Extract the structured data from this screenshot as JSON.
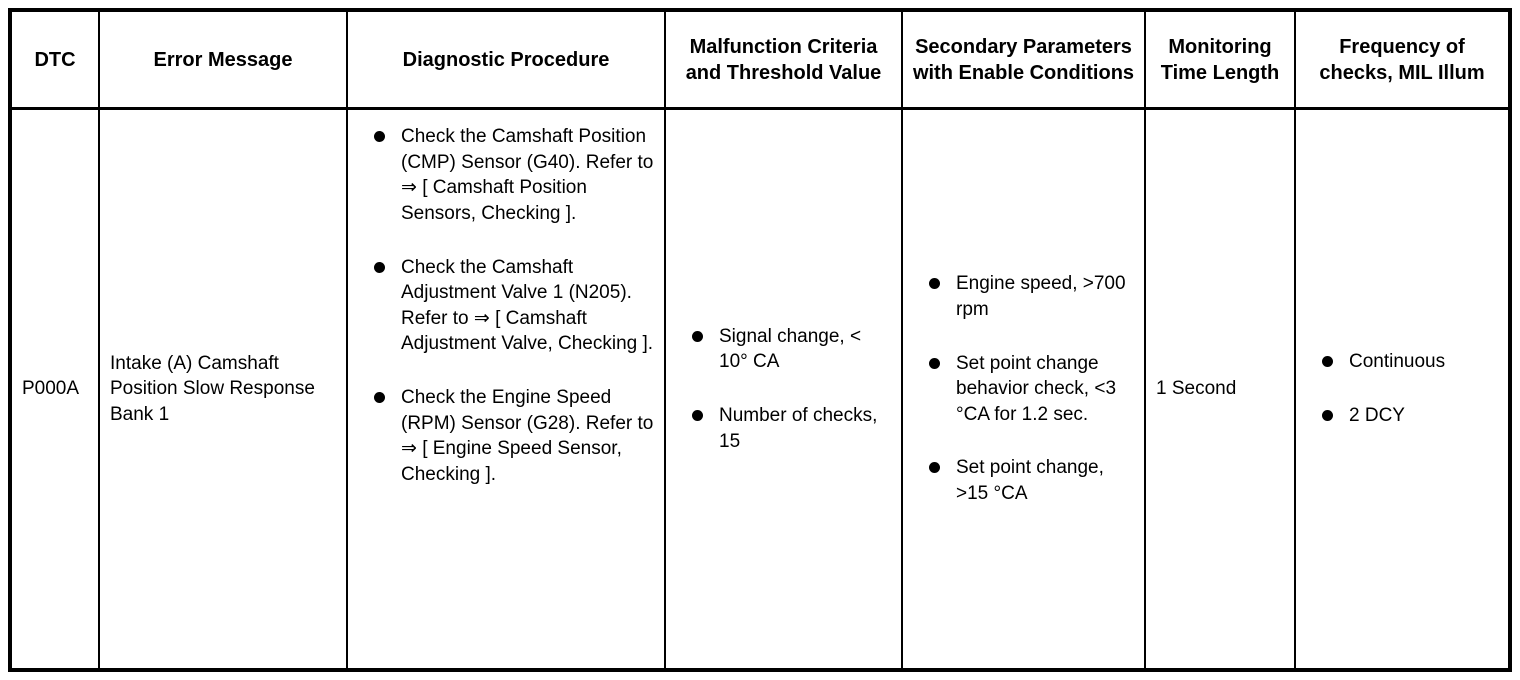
{
  "table": {
    "headers": [
      "DTC",
      "Error Message",
      "Diagnostic Procedure",
      "Malfunction Criteria and Threshold Value",
      "Secondary Parameters with Enable Conditions",
      "Monitoring Time Length",
      "Frequency of checks, MIL Illum"
    ],
    "rows": [
      {
        "dtc": "P000A",
        "error_message": "Intake (A) Camshaft Position Slow Response Bank 1",
        "diagnostic_procedure": [
          "Check the Camshaft Position (CMP) Sensor (G40). Refer to ⇒ [ Camshaft Position Sensors, Checking ].",
          "Check the Camshaft Adjustment Valve 1 (N205). Refer to ⇒ [ Camshaft Adjustment Valve, Checking ].",
          "Check the Engine Speed (RPM) Sensor (G28). Refer to ⇒ [ Engine Speed Sensor, Checking ]."
        ],
        "malfunction_criteria": [
          "Signal change, < 10° CA",
          "Number of checks, 15"
        ],
        "secondary_parameters": [
          "Engine speed, >700 rpm",
          "Set point change behavior check, <3 °CA for 1.2 sec.",
          "Set point change, >15 °CA"
        ],
        "monitoring_time": "1 Second",
        "frequency_of_checks": [
          "Continuous",
          "2 DCY"
        ]
      }
    ]
  }
}
